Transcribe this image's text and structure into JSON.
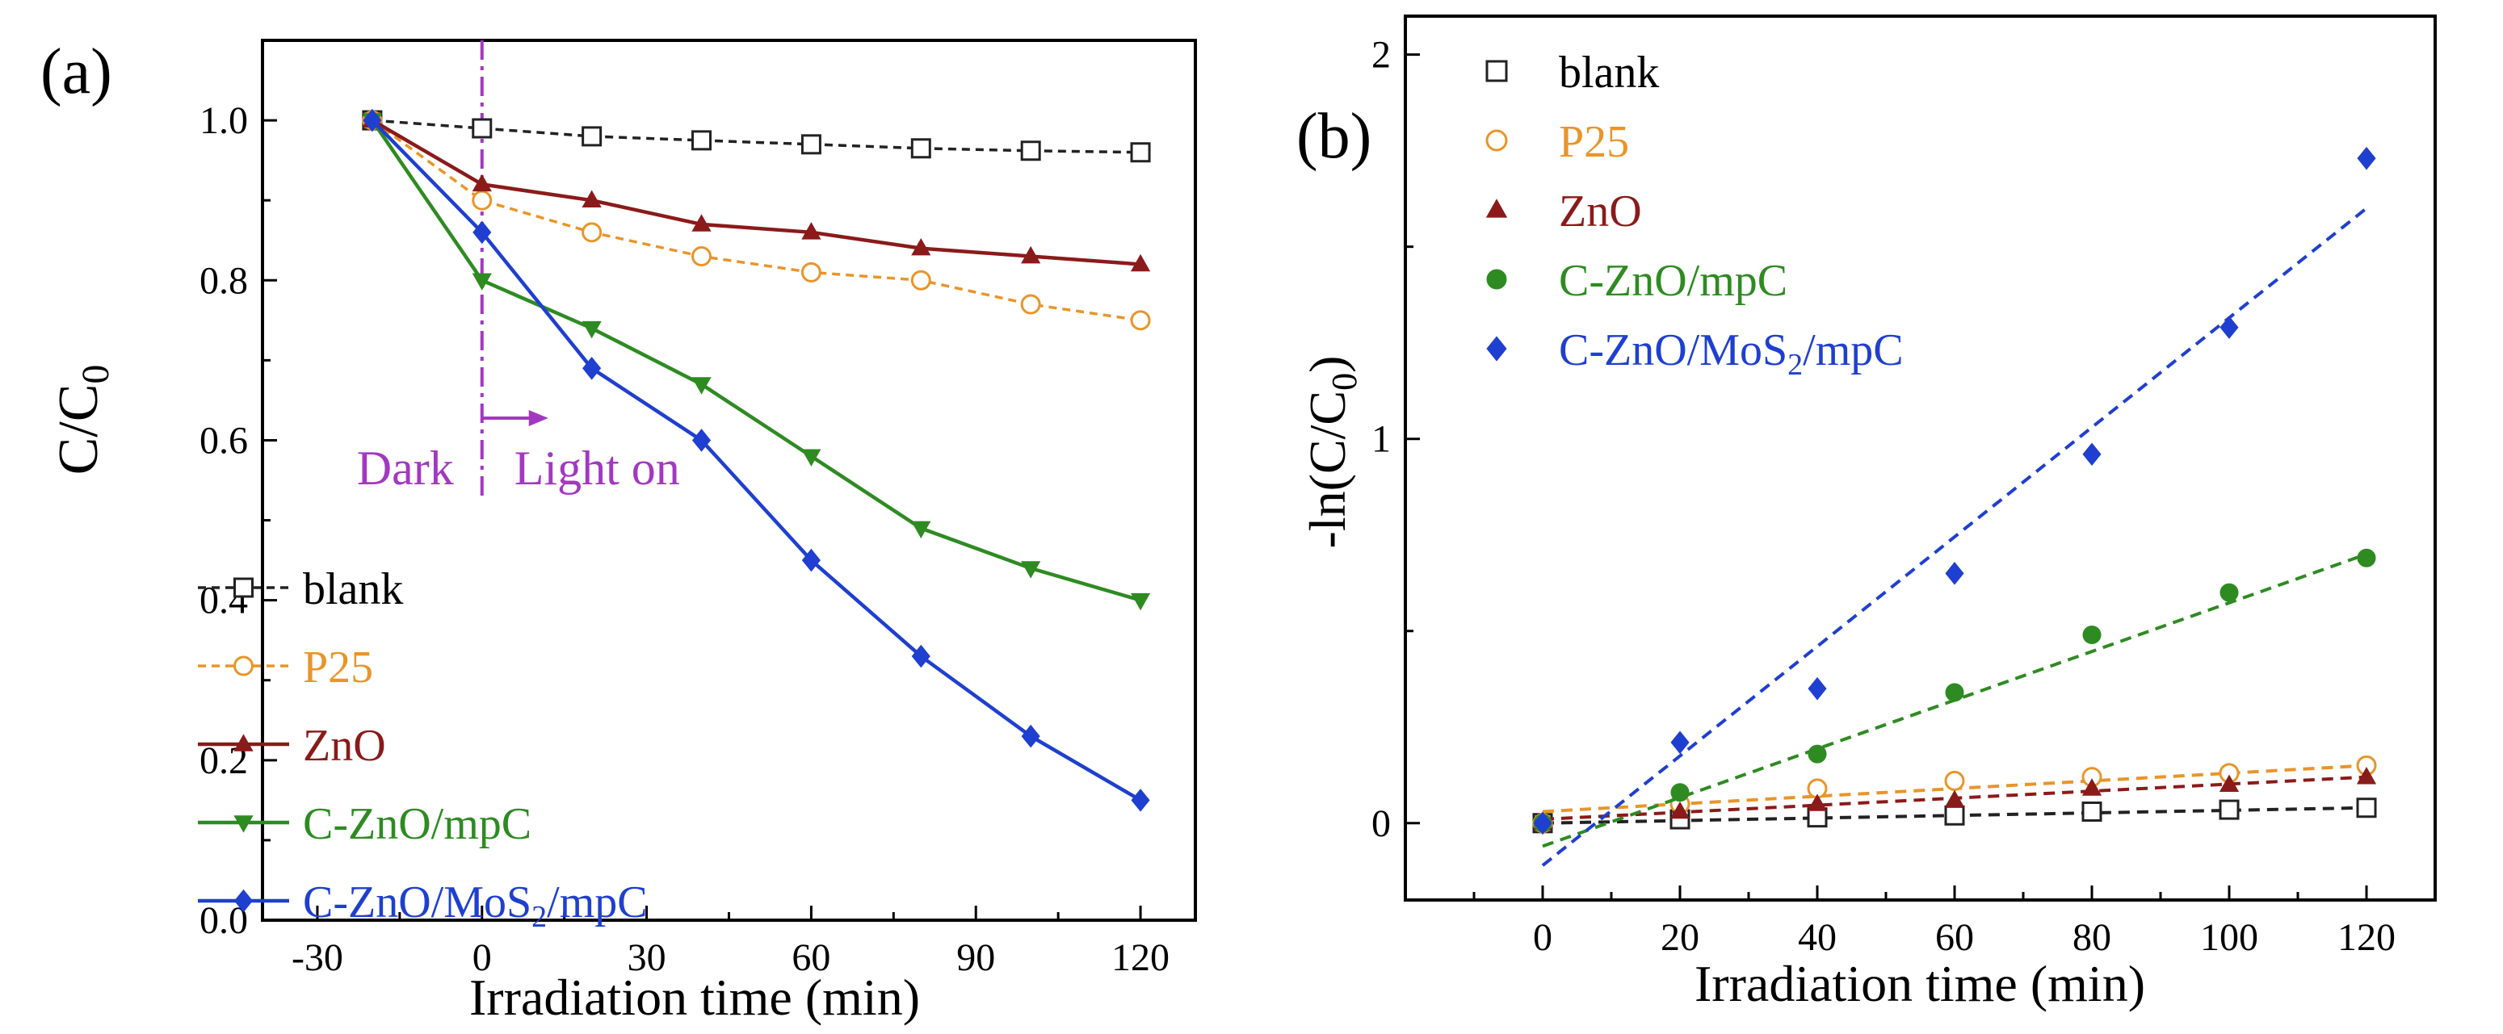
{
  "colors": {
    "blank": "#222222",
    "P25": "#e8952a",
    "ZnO": "#8b1a1a",
    "C-ZnO/mpC": "#2e8b22",
    "C-ZnO/MoS2/mpC": "#1f3fd0",
    "annotation": "#a238c0",
    "axis": "#000000"
  },
  "chart_data": [
    {
      "panel_label": "(a)",
      "type": "line",
      "xlabel": "Irradiation time (min)",
      "ylabel": "C/C0",
      "ylabel_parts": {
        "main": "C/C",
        "sub": "0"
      },
      "xlim": [
        -40,
        130
      ],
      "ylim": [
        0.0,
        1.1
      ],
      "xticks": [
        -30,
        0,
        30,
        60,
        90,
        120
      ],
      "xtick_labels": [
        "-30",
        "0",
        "30",
        "60",
        "90",
        "120"
      ],
      "yticks": [
        0.0,
        0.2,
        0.4,
        0.6,
        0.8,
        1.0
      ],
      "ytick_labels": [
        "0.0",
        "0.2",
        "0.4",
        "0.6",
        "0.8",
        "1.0"
      ],
      "x": [
        -20,
        0,
        20,
        40,
        60,
        80,
        100,
        120
      ],
      "annotations": {
        "divider_x": 0,
        "dark_label": "Dark",
        "light_label": "Light on"
      },
      "series": [
        {
          "name": "blank",
          "legend_label": "blank",
          "values": [
            1.0,
            0.99,
            0.98,
            0.975,
            0.97,
            0.965,
            0.962,
            0.96
          ],
          "marker": "open-square",
          "dashed": true
        },
        {
          "name": "P25",
          "legend_label": "P25",
          "values": [
            1.0,
            0.9,
            0.86,
            0.83,
            0.81,
            0.8,
            0.77,
            0.75
          ],
          "marker": "open-circle",
          "dashed": true
        },
        {
          "name": "ZnO",
          "legend_label": "ZnO",
          "values": [
            1.0,
            0.92,
            0.9,
            0.87,
            0.86,
            0.84,
            0.83,
            0.82
          ],
          "marker": "triangle-up",
          "dashed": false
        },
        {
          "name": "C-ZnO/mpC",
          "legend_label": "C-ZnO/mpC",
          "values": [
            1.0,
            0.8,
            0.74,
            0.67,
            0.58,
            0.49,
            0.44,
            0.4
          ],
          "marker": "triangle-down",
          "dashed": false
        },
        {
          "name": "C-ZnO/MoS2/mpC",
          "legend_label": "C-ZnO/MoS",
          "legend_sub": "2",
          "legend_tail": "/mpC",
          "values": [
            1.0,
            0.86,
            0.69,
            0.6,
            0.45,
            0.33,
            0.23,
            0.15
          ],
          "marker": "diamond",
          "dashed": false
        }
      ]
    },
    {
      "panel_label": "(b)",
      "type": "scatter",
      "xlabel": "Irradiation time (min)",
      "ylabel": "-ln(C/C0)",
      "ylabel_parts": {
        "main": "-ln(C/C",
        "sub": "0",
        "tail": ")"
      },
      "xlim": [
        -20,
        130
      ],
      "ylim": [
        -0.2,
        2.1
      ],
      "xticks": [
        0,
        20,
        40,
        60,
        80,
        100,
        120
      ],
      "xtick_labels": [
        "0",
        "20",
        "40",
        "60",
        "80",
        "100",
        "120"
      ],
      "yticks": [
        0,
        1,
        2
      ],
      "ytick_labels": [
        "0",
        "1",
        "2"
      ],
      "x": [
        0,
        20,
        40,
        60,
        80,
        100,
        120
      ],
      "series": [
        {
          "name": "blank",
          "legend_label": "blank",
          "values": [
            0.0,
            0.01,
            0.015,
            0.02,
            0.03,
            0.035,
            0.04
          ],
          "marker": "open-square",
          "fit": [
            0.0,
            0.04
          ]
        },
        {
          "name": "P25",
          "legend_label": "P25",
          "values": [
            0.0,
            0.05,
            0.09,
            0.11,
            0.12,
            0.13,
            0.15
          ],
          "marker": "open-circle",
          "fit": [
            0.03,
            0.15
          ]
        },
        {
          "name": "ZnO",
          "legend_label": "ZnO",
          "values": [
            0.0,
            0.03,
            0.05,
            0.06,
            0.09,
            0.1,
            0.12
          ],
          "marker": "triangle-up",
          "fit": [
            0.01,
            0.12
          ]
        },
        {
          "name": "C-ZnO/mpC",
          "legend_label": "C-ZnO/mpC",
          "values": [
            0.0,
            0.08,
            0.18,
            0.34,
            0.49,
            0.6,
            0.69
          ],
          "marker": "circle",
          "fit": [
            -0.06,
            0.7
          ]
        },
        {
          "name": "C-ZnO/MoS2/mpC",
          "legend_label": "C-ZnO/MoS",
          "legend_sub": "2",
          "legend_tail": "/mpC",
          "values": [
            0.0,
            0.21,
            0.35,
            0.65,
            0.96,
            1.29,
            1.73
          ],
          "marker": "diamond",
          "fit": [
            -0.11,
            1.6
          ]
        }
      ]
    }
  ]
}
